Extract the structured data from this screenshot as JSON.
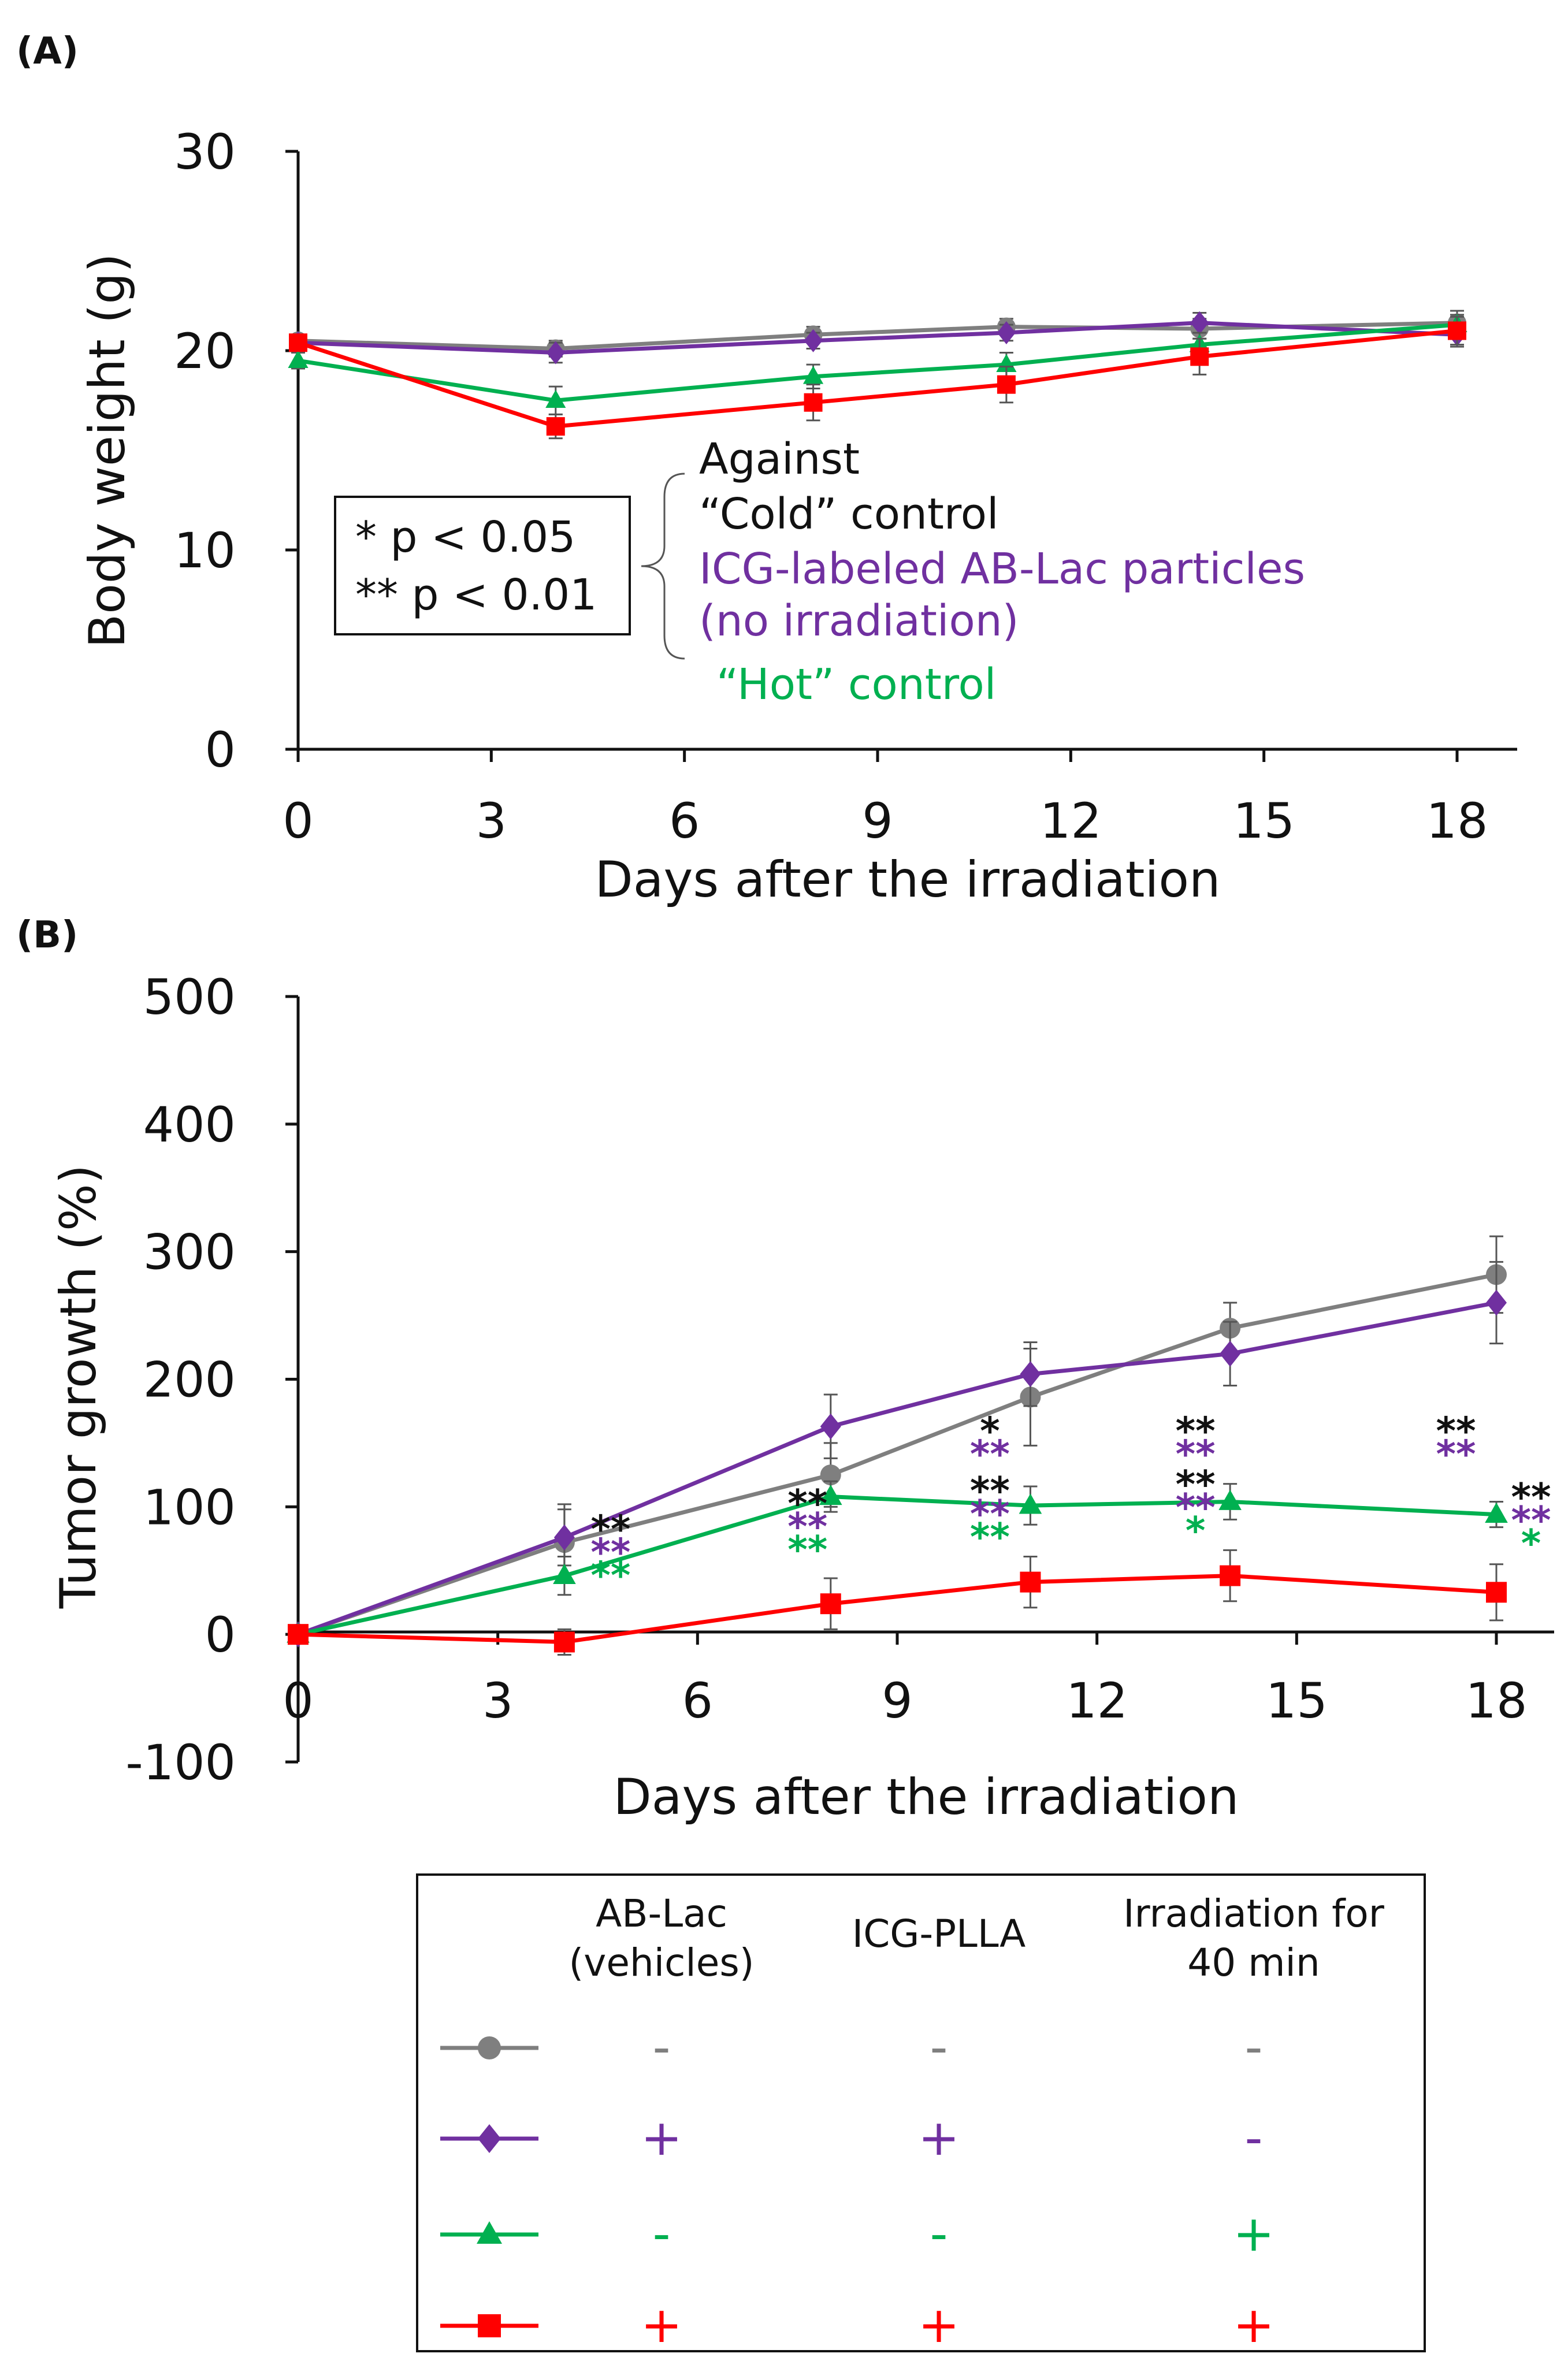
{
  "colors": {
    "cold": "#7f7f7f",
    "abicg": "#7030a0",
    "hot": "#00b050",
    "treat": "#ff0000",
    "black": "#111111"
  },
  "chart_data": [
    {
      "id": "A",
      "panel_label": "(A)",
      "type": "line",
      "xlabel": "Days after the irradiation",
      "ylabel": "Body weight (g)",
      "xlim": [
        0,
        19
      ],
      "ylim": [
        0,
        30
      ],
      "xticks": [
        0,
        3,
        6,
        9,
        12,
        15,
        18
      ],
      "yticks": [
        0,
        10,
        20,
        30
      ],
      "series": [
        {
          "key": "cold",
          "marker": "circle",
          "x": [
            0,
            4,
            8,
            11,
            14,
            18
          ],
          "y": [
            20.5,
            20.1,
            20.8,
            21.2,
            21.1,
            21.4
          ],
          "err": [
            0.3,
            0.4,
            0.4,
            0.4,
            0.5,
            0.6
          ]
        },
        {
          "key": "abicg",
          "marker": "diamond",
          "x": [
            0,
            4,
            8,
            11,
            14,
            18
          ],
          "y": [
            20.4,
            19.9,
            20.5,
            20.9,
            21.4,
            20.8
          ],
          "err": [
            0.3,
            0.5,
            0.4,
            0.4,
            0.5,
            0.6
          ]
        },
        {
          "key": "hot",
          "marker": "triangle",
          "x": [
            0,
            4,
            8,
            11,
            14,
            18
          ],
          "y": [
            19.5,
            17.5,
            18.7,
            19.3,
            20.3,
            21.3
          ],
          "err": [
            0.4,
            0.7,
            0.6,
            0.6,
            0.6,
            0.5
          ]
        },
        {
          "key": "treat",
          "marker": "square",
          "x": [
            0,
            4,
            8,
            11,
            14,
            18
          ],
          "y": [
            20.4,
            16.2,
            17.4,
            18.3,
            19.7,
            21.0
          ],
          "err": [
            0.3,
            0.6,
            0.9,
            0.9,
            0.9,
            0.7
          ]
        }
      ]
    },
    {
      "id": "B",
      "panel_label": "(B)",
      "type": "line",
      "xlabel": "Days after the irradiation",
      "ylabel": "Tumor growth (%)",
      "xlim": [
        0,
        19
      ],
      "ylim": [
        -100,
        500
      ],
      "xticks": [
        0,
        3,
        6,
        9,
        12,
        15,
        18
      ],
      "yticks": [
        -100,
        0,
        100,
        200,
        300,
        400,
        500
      ],
      "series": [
        {
          "key": "cold",
          "marker": "circle",
          "x": [
            0,
            4,
            8,
            11,
            14,
            18
          ],
          "y": [
            0,
            72,
            125,
            186,
            240,
            282
          ],
          "err": [
            0,
            30,
            25,
            38,
            20,
            30
          ]
        },
        {
          "key": "abicg",
          "marker": "diamond",
          "x": [
            0,
            4,
            8,
            11,
            14,
            18
          ],
          "y": [
            0,
            76,
            163,
            204,
            220,
            260
          ],
          "err": [
            0,
            22,
            25,
            25,
            25,
            32
          ]
        },
        {
          "key": "hot",
          "marker": "triangle",
          "x": [
            0,
            4,
            8,
            11,
            14,
            18
          ],
          "y": [
            0,
            46,
            108,
            101,
            104,
            94
          ],
          "err": [
            0,
            15,
            12,
            15,
            14,
            10
          ]
        },
        {
          "key": "treat",
          "marker": "square",
          "x": [
            0,
            4,
            8,
            11,
            14,
            18
          ],
          "y": [
            0,
            -6,
            24,
            41,
            46,
            33
          ],
          "err": [
            0,
            10,
            20,
            20,
            20,
            22
          ]
        }
      ],
      "significance": [
        {
          "x": 4,
          "y": 45,
          "marks": [
            {
              "text": "**",
              "key": "black"
            },
            {
              "text": "**",
              "key": "abicg"
            },
            {
              "text": "**",
              "key": "hot"
            }
          ]
        },
        {
          "x": 8,
          "y": 65,
          "marks": [
            {
              "text": "**",
              "key": "black"
            },
            {
              "text": "**",
              "key": "abicg"
            },
            {
              "text": "**",
              "key": "hot"
            }
          ]
        },
        {
          "x": 11,
          "y": 75,
          "marks": [
            {
              "text": "**",
              "key": "black"
            },
            {
              "text": "**",
              "key": "abicg"
            },
            {
              "text": "**",
              "key": "hot"
            }
          ]
        },
        {
          "x": 11,
          "y": 140,
          "marks": [
            {
              "text": "*",
              "key": "black"
            },
            {
              "text": "**",
              "key": "abicg"
            }
          ]
        },
        {
          "x": 14,
          "y": 140,
          "marks": [
            {
              "text": "**",
              "key": "black"
            },
            {
              "text": "**",
              "key": "abicg"
            }
          ]
        },
        {
          "x": 14,
          "y": 80,
          "marks": [
            {
              "text": "**",
              "key": "black"
            },
            {
              "text": "**",
              "key": "abicg"
            },
            {
              "text": "*",
              "key": "hot"
            }
          ]
        },
        {
          "x": 18,
          "y": 140,
          "marks": [
            {
              "text": "**",
              "key": "black"
            },
            {
              "text": "**",
              "key": "abicg"
            }
          ]
        },
        {
          "x": 18,
          "y": 70,
          "marks": [
            {
              "text": "**",
              "key": "black"
            },
            {
              "text": "**",
              "key": "abicg"
            },
            {
              "text": "*",
              "key": "hot"
            }
          ]
        }
      ]
    }
  ],
  "significance_legend": {
    "lines": [
      "*    p < 0.05",
      "** p < 0.01"
    ],
    "against": "Against",
    "groups": [
      {
        "text": "“Cold” control",
        "key": "black"
      },
      {
        "text": "ICG-labeled AB-Lac particles",
        "key": "abicg"
      },
      {
        "text": "(no irradiation)",
        "key": "abicg"
      },
      {
        "text": "“Hot” control",
        "key": "hot"
      }
    ]
  },
  "legend": {
    "headers": [
      [
        "AB-Lac",
        "(vehicles)"
      ],
      [
        "ICG-PLLA"
      ],
      [
        "Irradiation for",
        "40 min"
      ]
    ],
    "rows": [
      {
        "key": "cold",
        "marker": "circle",
        "values": [
          "-",
          "-",
          "-"
        ]
      },
      {
        "key": "abicg",
        "marker": "diamond",
        "values": [
          "+",
          "+",
          "-"
        ]
      },
      {
        "key": "hot",
        "marker": "triangle",
        "values": [
          "-",
          "-",
          "+"
        ]
      },
      {
        "key": "treat",
        "marker": "square",
        "values": [
          "+",
          "+",
          "+"
        ]
      }
    ]
  }
}
